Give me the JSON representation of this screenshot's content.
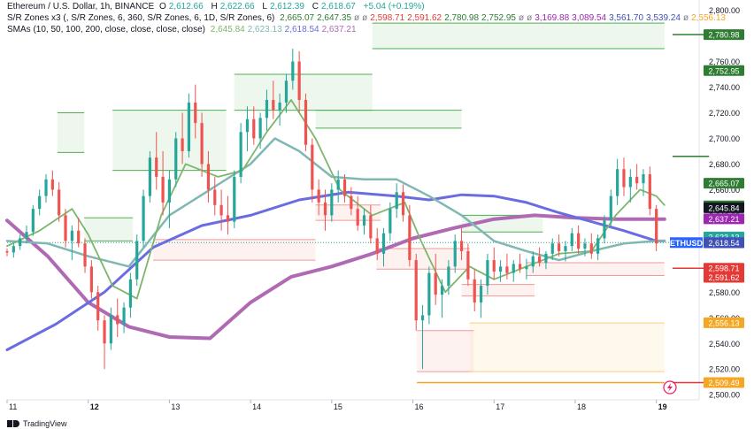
{
  "header": {
    "title_line": "Ethereum / U.S. Dollar, 1h, BINANCE",
    "ohlc": [
      {
        "k": "O",
        "v": "2,612.66"
      },
      {
        "k": "H",
        "v": "2,622.66"
      },
      {
        "k": "L",
        "v": "2,612.39"
      },
      {
        "k": "C",
        "v": "2,618.67"
      }
    ],
    "change": "+5.04 (+0.19%)",
    "sr_label": "S/R Zones x3 (, S/R Zones, 6, 360, S/R Zones, 6, 1D, S/R Zones, 6)",
    "sr_values": [
      "2,665.07",
      "2,647.35",
      "ø",
      "ø",
      "2,598.71",
      "2,591.62",
      "2,780.98",
      "2,752.95",
      "ø",
      "ø",
      "3,169.88",
      "3,089.54",
      "3,561.70",
      "3,539.24",
      "ø",
      "2,556.13"
    ],
    "sma_label": "SMAs (10, 50, 100, 200, close, close, close, close)",
    "sma_values": [
      "2,645.84",
      "2,623.13",
      "2,618.54",
      "2,637.21"
    ],
    "footer_brand": "TradingView"
  },
  "colors": {
    "up": "#26a69a",
    "down": "#ef5350",
    "sma10": "#7cb66d",
    "sma50": "#7fb8b3",
    "sma100": "#6a6ce0",
    "sma200": "#b06ab3",
    "zone_green_fill": "rgba(76,175,80,0.10)",
    "zone_red_fill": "rgba(239,83,80,0.08)",
    "zone_orange_fill": "rgba(255,183,77,0.10)",
    "tag_green": "#2e7d32",
    "tag_red": "#e53935",
    "tag_orange": "#f5a623",
    "price_tag": "#2962ff"
  },
  "chart_data": {
    "type": "candlestick",
    "symbol_tag": "ETHUSD",
    "y_ticks": [
      2500,
      2520,
      2540,
      2560,
      2580,
      2600,
      2620,
      2640,
      2660,
      2680,
      2700,
      2720,
      2740,
      2760,
      2780,
      2800
    ],
    "y_tick_labels": [
      "2,500.00",
      "2,520.00",
      "2,540.00",
      "2,560.00",
      "2,580.00",
      "2,600.00",
      "2,620.00",
      "2,640.00",
      "2,660.00",
      "2,680.00",
      "2,700.00",
      "2,720.00",
      "2,740.00",
      "2,760.00",
      "2,780.00",
      "2,800.00"
    ],
    "ylim": [
      2496,
      2808
    ],
    "x_ticks": [
      "11",
      "12",
      "13",
      "14",
      "15",
      "16",
      "17",
      "18",
      "19"
    ],
    "x_tick_positions_day": [
      0,
      1,
      2,
      3,
      4,
      5,
      6,
      7,
      8
    ],
    "xlim_day": [
      0,
      8.2
    ],
    "candles": [
      [
        0.0,
        2612,
        2614,
        2608,
        2611
      ],
      [
        0.08,
        2611,
        2618,
        2607,
        2616
      ],
      [
        0.16,
        2616,
        2625,
        2613,
        2622
      ],
      [
        0.24,
        2622,
        2632,
        2618,
        2627
      ],
      [
        0.32,
        2627,
        2648,
        2624,
        2645
      ],
      [
        0.4,
        2645,
        2660,
        2640,
        2655
      ],
      [
        0.48,
        2655,
        2672,
        2650,
        2668
      ],
      [
        0.56,
        2668,
        2675,
        2655,
        2660
      ],
      [
        0.64,
        2660,
        2666,
        2635,
        2640
      ],
      [
        0.72,
        2640,
        2645,
        2615,
        2620
      ],
      [
        0.8,
        2620,
        2632,
        2605,
        2628
      ],
      [
        0.88,
        2628,
        2638,
        2615,
        2618
      ],
      [
        0.96,
        2618,
        2622,
        2595,
        2600
      ],
      [
        1.04,
        2600,
        2605,
        2575,
        2580
      ],
      [
        1.12,
        2580,
        2585,
        2550,
        2558
      ],
      [
        1.2,
        2558,
        2562,
        2520,
        2540
      ],
      [
        1.28,
        2540,
        2568,
        2535,
        2562
      ],
      [
        1.36,
        2562,
        2575,
        2545,
        2555
      ],
      [
        1.44,
        2555,
        2572,
        2548,
        2568
      ],
      [
        1.52,
        2568,
        2595,
        2560,
        2590
      ],
      [
        1.6,
        2590,
        2625,
        2585,
        2620
      ],
      [
        1.68,
        2620,
        2660,
        2615,
        2655
      ],
      [
        1.76,
        2655,
        2690,
        2650,
        2685
      ],
      [
        1.84,
        2685,
        2705,
        2660,
        2670
      ],
      [
        1.92,
        2670,
        2690,
        2640,
        2650
      ],
      [
        2.0,
        2650,
        2675,
        2630,
        2668
      ],
      [
        2.08,
        2668,
        2705,
        2662,
        2700
      ],
      [
        2.16,
        2700,
        2720,
        2680,
        2690
      ],
      [
        2.24,
        2690,
        2735,
        2685,
        2728
      ],
      [
        2.32,
        2728,
        2742,
        2700,
        2712
      ],
      [
        2.4,
        2712,
        2720,
        2670,
        2680
      ],
      [
        2.48,
        2680,
        2690,
        2650,
        2660
      ],
      [
        2.56,
        2660,
        2670,
        2640,
        2648
      ],
      [
        2.64,
        2648,
        2660,
        2628,
        2640
      ],
      [
        2.72,
        2640,
        2655,
        2625,
        2635
      ],
      [
        2.8,
        2635,
        2675,
        2630,
        2670
      ],
      [
        2.88,
        2670,
        2712,
        2665,
        2705
      ],
      [
        2.96,
        2705,
        2725,
        2690,
        2715
      ],
      [
        3.04,
        2715,
        2725,
        2695,
        2700
      ],
      [
        3.12,
        2700,
        2720,
        2692,
        2716
      ],
      [
        3.2,
        2716,
        2738,
        2706,
        2730
      ],
      [
        3.28,
        2730,
        2745,
        2715,
        2722
      ],
      [
        3.36,
        2722,
        2735,
        2710,
        2728
      ],
      [
        3.44,
        2728,
        2750,
        2720,
        2745
      ],
      [
        3.52,
        2745,
        2770,
        2738,
        2760
      ],
      [
        3.6,
        2760,
        2768,
        2720,
        2730
      ],
      [
        3.68,
        2730,
        2735,
        2690,
        2695
      ],
      [
        3.76,
        2695,
        2700,
        2650,
        2660
      ],
      [
        3.84,
        2660,
        2668,
        2640,
        2650
      ],
      [
        3.92,
        2650,
        2660,
        2628,
        2640
      ],
      [
        4.0,
        2640,
        2665,
        2635,
        2660
      ],
      [
        4.08,
        2660,
        2675,
        2650,
        2668
      ],
      [
        4.16,
        2668,
        2672,
        2650,
        2655
      ],
      [
        4.24,
        2655,
        2662,
        2640,
        2645
      ],
      [
        4.32,
        2645,
        2655,
        2628,
        2632
      ],
      [
        4.4,
        2632,
        2645,
        2625,
        2640
      ],
      [
        4.48,
        2640,
        2648,
        2618,
        2622
      ],
      [
        4.56,
        2622,
        2630,
        2605,
        2610
      ],
      [
        4.64,
        2610,
        2630,
        2600,
        2626
      ],
      [
        4.72,
        2626,
        2650,
        2620,
        2645
      ],
      [
        4.8,
        2645,
        2665,
        2638,
        2658
      ],
      [
        4.88,
        2658,
        2664,
        2635,
        2640
      ],
      [
        4.96,
        2640,
        2648,
        2600,
        2605
      ],
      [
        5.04,
        2605,
        2610,
        2550,
        2558
      ],
      [
        5.12,
        2558,
        2570,
        2520,
        2562
      ],
      [
        5.2,
        2562,
        2600,
        2555,
        2595
      ],
      [
        5.28,
        2595,
        2610,
        2570,
        2578
      ],
      [
        5.36,
        2578,
        2590,
        2560,
        2585
      ],
      [
        5.44,
        2585,
        2605,
        2578,
        2600
      ],
      [
        5.52,
        2600,
        2625,
        2595,
        2620
      ],
      [
        5.6,
        2620,
        2630,
        2605,
        2612
      ],
      [
        5.68,
        2612,
        2618,
        2585,
        2590
      ],
      [
        5.76,
        2590,
        2598,
        2565,
        2572
      ],
      [
        5.84,
        2572,
        2590,
        2560,
        2585
      ],
      [
        5.92,
        2585,
        2610,
        2578,
        2605
      ],
      [
        6.0,
        2605,
        2615,
        2590,
        2596
      ],
      [
        6.08,
        2596,
        2605,
        2588,
        2600
      ],
      [
        6.16,
        2600,
        2610,
        2590,
        2595
      ],
      [
        6.24,
        2595,
        2605,
        2588,
        2602
      ],
      [
        6.32,
        2602,
        2610,
        2595,
        2598
      ],
      [
        6.4,
        2598,
        2606,
        2590,
        2600
      ],
      [
        6.48,
        2600,
        2612,
        2595,
        2608
      ],
      [
        6.56,
        2608,
        2615,
        2600,
        2603
      ],
      [
        6.64,
        2603,
        2612,
        2598,
        2610
      ],
      [
        6.72,
        2610,
        2622,
        2605,
        2618
      ],
      [
        6.8,
        2618,
        2625,
        2608,
        2612
      ],
      [
        6.88,
        2612,
        2620,
        2604,
        2616
      ],
      [
        6.96,
        2616,
        2630,
        2612,
        2626
      ],
      [
        7.04,
        2626,
        2632,
        2610,
        2614
      ],
      [
        7.12,
        2614,
        2622,
        2608,
        2618
      ],
      [
        7.2,
        2618,
        2626,
        2606,
        2610
      ],
      [
        7.28,
        2610,
        2625,
        2605,
        2622
      ],
      [
        7.36,
        2622,
        2640,
        2618,
        2636
      ],
      [
        7.44,
        2636,
        2660,
        2630,
        2655
      ],
      [
        7.52,
        2655,
        2684,
        2648,
        2676
      ],
      [
        7.6,
        2676,
        2685,
        2655,
        2662
      ],
      [
        7.68,
        2662,
        2676,
        2650,
        2670
      ],
      [
        7.76,
        2670,
        2680,
        2660,
        2665
      ],
      [
        7.84,
        2665,
        2676,
        2655,
        2672
      ],
      [
        7.92,
        2672,
        2678,
        2640,
        2645
      ],
      [
        8.0,
        2645,
        2648,
        2612,
        2618
      ]
    ],
    "sma10": [
      [
        0,
        2616
      ],
      [
        0.4,
        2628
      ],
      [
        0.8,
        2645
      ],
      [
        1.0,
        2625
      ],
      [
        1.3,
        2585
      ],
      [
        1.6,
        2575
      ],
      [
        1.9,
        2640
      ],
      [
        2.2,
        2680
      ],
      [
        2.6,
        2670
      ],
      [
        2.9,
        2675
      ],
      [
        3.2,
        2705
      ],
      [
        3.5,
        2730
      ],
      [
        3.8,
        2700
      ],
      [
        4.1,
        2660
      ],
      [
        4.5,
        2640
      ],
      [
        4.9,
        2650
      ],
      [
        5.1,
        2620
      ],
      [
        5.4,
        2580
      ],
      [
        5.7,
        2600
      ],
      [
        6.0,
        2590
      ],
      [
        6.4,
        2600
      ],
      [
        6.8,
        2610
      ],
      [
        7.2,
        2612
      ],
      [
        7.5,
        2640
      ],
      [
        7.8,
        2660
      ],
      [
        8.0,
        2655
      ],
      [
        8.1,
        2648
      ]
    ],
    "sma50": [
      [
        0,
        2620
      ],
      [
        0.5,
        2618
      ],
      [
        1.0,
        2608
      ],
      [
        1.5,
        2600
      ],
      [
        2.0,
        2640
      ],
      [
        2.5,
        2660
      ],
      [
        3.0,
        2680
      ],
      [
        3.3,
        2700
      ],
      [
        3.6,
        2690
      ],
      [
        4.0,
        2670
      ],
      [
        4.4,
        2668
      ],
      [
        4.8,
        2668
      ],
      [
        5.2,
        2655
      ],
      [
        5.6,
        2640
      ],
      [
        6.0,
        2620
      ],
      [
        6.4,
        2612
      ],
      [
        6.8,
        2605
      ],
      [
        7.2,
        2612
      ],
      [
        7.6,
        2618
      ],
      [
        8.0,
        2620
      ],
      [
        8.1,
        2620
      ]
    ],
    "sma100": [
      [
        0,
        2535
      ],
      [
        0.6,
        2555
      ],
      [
        1.2,
        2580
      ],
      [
        1.8,
        2615
      ],
      [
        2.4,
        2632
      ],
      [
        3.0,
        2640
      ],
      [
        3.6,
        2652
      ],
      [
        4.2,
        2658
      ],
      [
        4.8,
        2655
      ],
      [
        5.2,
        2652
      ],
      [
        5.6,
        2656
      ],
      [
        6.0,
        2655
      ],
      [
        6.4,
        2650
      ],
      [
        6.8,
        2642
      ],
      [
        7.2,
        2635
      ],
      [
        7.6,
        2628
      ],
      [
        8.0,
        2620
      ],
      [
        8.1,
        2620
      ]
    ],
    "sma200": [
      [
        0,
        2636
      ],
      [
        0.5,
        2608
      ],
      [
        1.0,
        2572
      ],
      [
        1.5,
        2553
      ],
      [
        2.0,
        2545
      ],
      [
        2.5,
        2544
      ],
      [
        3.0,
        2572
      ],
      [
        3.5,
        2592
      ],
      [
        4.0,
        2600
      ],
      [
        4.5,
        2610
      ],
      [
        5.0,
        2622
      ],
      [
        5.5,
        2630
      ],
      [
        6.0,
        2637
      ],
      [
        6.5,
        2640
      ],
      [
        7.0,
        2638
      ],
      [
        7.5,
        2637
      ],
      [
        8.0,
        2637
      ],
      [
        8.1,
        2637
      ]
    ],
    "zones": [
      {
        "x0": 0.62,
        "x1": 0.95,
        "y0": 2720,
        "y1": 2689,
        "kind": "green"
      },
      {
        "x0": 0.95,
        "x1": 1.55,
        "y0": 2638,
        "y1": 2620,
        "kind": "green"
      },
      {
        "x0": 1.3,
        "x1": 2.7,
        "y0": 2722,
        "y1": 2675,
        "kind": "green"
      },
      {
        "x0": 1.8,
        "x1": 3.8,
        "y0": 2621,
        "y1": 2605,
        "kind": "red"
      },
      {
        "x0": 2.8,
        "x1": 4.5,
        "y0": 2750,
        "y1": 2722,
        "kind": "green"
      },
      {
        "x0": 3.8,
        "x1": 5.6,
        "y0": 2722,
        "y1": 2708,
        "kind": "green"
      },
      {
        "x0": 4.5,
        "x1": 8.1,
        "y0": 2790,
        "y1": 2770,
        "kind": "green"
      },
      {
        "x0": 3.8,
        "x1": 4.6,
        "y0": 2648,
        "y1": 2636,
        "kind": "red"
      },
      {
        "x0": 4.55,
        "x1": 5.7,
        "y0": 2614,
        "y1": 2598,
        "kind": "red"
      },
      {
        "x0": 5.6,
        "x1": 6.6,
        "y0": 2640,
        "y1": 2627,
        "kind": "green"
      },
      {
        "x0": 5.6,
        "x1": 6.5,
        "y0": 2586,
        "y1": 2577,
        "kind": "red"
      },
      {
        "x0": 6.4,
        "x1": 8.1,
        "y0": 2603,
        "y1": 2593,
        "kind": "red"
      },
      {
        "x0": 5.05,
        "x1": 5.75,
        "y0": 2550,
        "y1": 2518,
        "kind": "red"
      },
      {
        "x0": 5.7,
        "x1": 8.1,
        "y0": 2556,
        "y1": 2518,
        "kind": "orange"
      }
    ],
    "zone_lines": [
      {
        "x0": 8.2,
        "x1": 8.65,
        "y": 2780.98,
        "color": "#2e7d32"
      },
      {
        "x0": 8.2,
        "x1": 8.65,
        "y": 2686,
        "color": "#2e7d32"
      },
      {
        "x0": 8.2,
        "x1": 8.65,
        "y": 2598.71,
        "color": "#e53935"
      },
      {
        "x0": 8.2,
        "x1": 8.65,
        "y": 2509.49,
        "color": "#e53935"
      },
      {
        "x0": 5.05,
        "x1": 8.1,
        "y": 2509.49,
        "color": "#f5a623"
      }
    ],
    "price_tags": [
      {
        "y": 2780.98,
        "label": "2,780.98",
        "bg": "#2e7d32"
      },
      {
        "y": 2752.95,
        "label": "2,752.95",
        "bg": "#2e7d32"
      },
      {
        "y": 2665.07,
        "label": "2,665.07",
        "bg": "#2e7d32"
      },
      {
        "y": 2647.35,
        "label": "2,647.35",
        "bg": "#2e7d32"
      },
      {
        "y": 2645.84,
        "label": "2,645.84",
        "bg": "#131722"
      },
      {
        "y": 2637.21,
        "label": "2,637.21",
        "bg": "#9c27b0"
      },
      {
        "y": 2623.13,
        "label": "2,623.13",
        "bg": "#26a69a"
      },
      {
        "y": 2618.67,
        "label": "2,618.67",
        "bg": "#2962ff"
      },
      {
        "y": 2618.54,
        "label": "2,618.54",
        "bg": "#3f51b5"
      },
      {
        "y": 2598.71,
        "label": "2,598.71",
        "bg": "#e53935"
      },
      {
        "y": 2591.62,
        "label": "2,591.62",
        "bg": "#e53935"
      },
      {
        "y": 2556.13,
        "label": "2,556.13",
        "bg": "#f5a623"
      },
      {
        "y": 2509.49,
        "label": "2,509.49",
        "bg": "#f5a623"
      }
    ]
  }
}
